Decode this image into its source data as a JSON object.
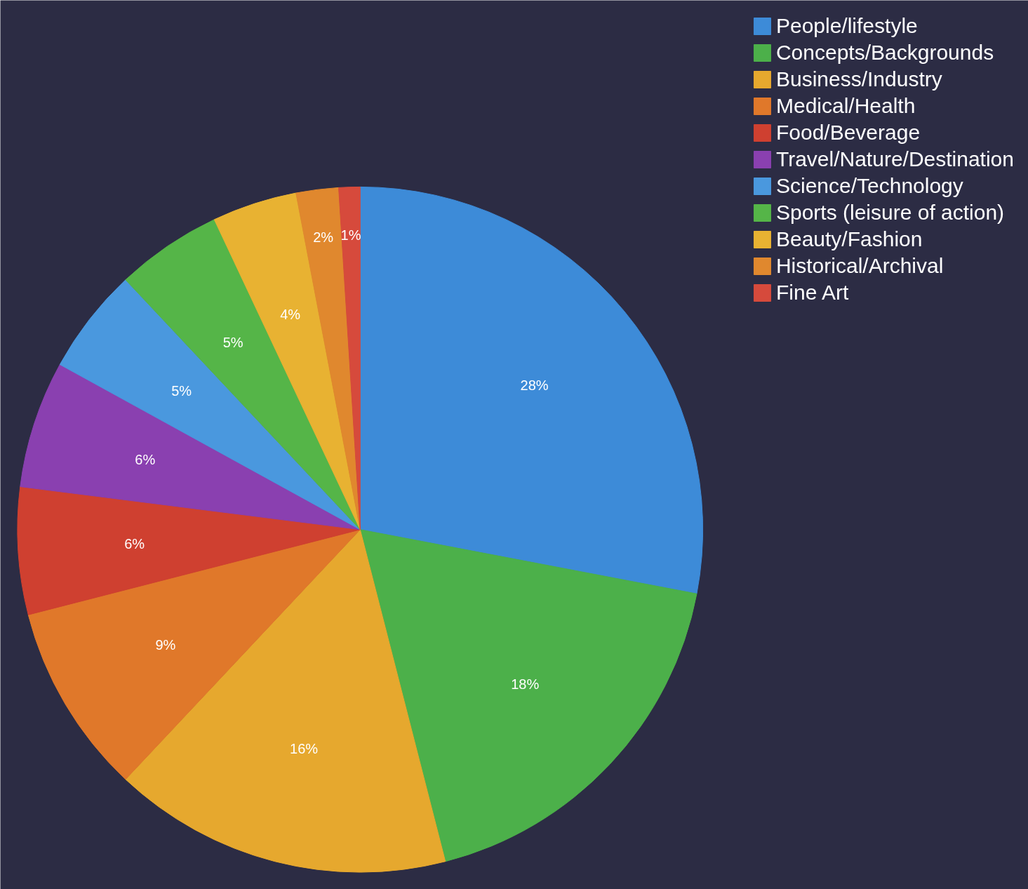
{
  "chart_data": {
    "type": "pie",
    "categories": [
      "People/lifestyle",
      "Concepts/Backgrounds",
      "Business/Industry",
      "Medical/Health",
      "Food/Beverage",
      "Travel/Nature/Destination",
      "Science/Technology",
      "Sports (leisure of action)",
      "Beauty/Fashion",
      "Historical/Archival",
      "Fine Art"
    ],
    "values": [
      28,
      18,
      16,
      9,
      6,
      6,
      5,
      5,
      4,
      2,
      1
    ],
    "colors": [
      "#3d8bd8",
      "#4cb04a",
      "#e6a82e",
      "#e0782a",
      "#cf4030",
      "#8a40b0",
      "#4a98de",
      "#55b548",
      "#e8b232",
      "#e0882e",
      "#d64a3c"
    ],
    "value_labels": [
      "28%",
      "18%",
      "16%",
      "9%",
      "6%",
      "6%",
      "5%",
      "5%",
      "4%",
      "2%",
      "1%"
    ],
    "legend": "top right"
  }
}
